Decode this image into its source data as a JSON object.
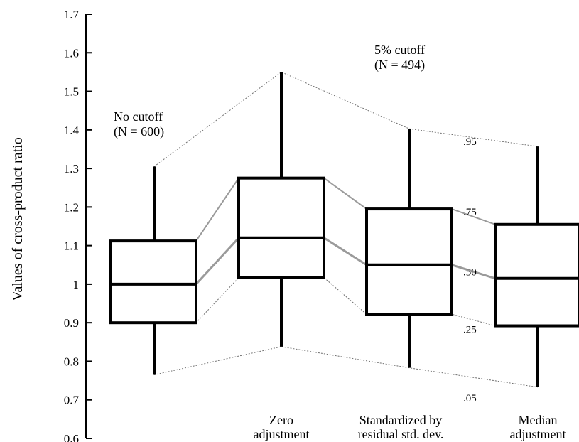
{
  "chart_data": {
    "type": "box",
    "title": "",
    "xlabel": "",
    "ylabel": "Values of cross-product ratio",
    "ylim": [
      0.6,
      1.7
    ],
    "yticks": [
      "0.6",
      "0.7",
      "0.8",
      "0.9",
      "1",
      "1.1",
      "1.2",
      "1.3",
      "1.4",
      "1.5",
      "1.6",
      "1.7"
    ],
    "grid": false,
    "categories": [
      {
        "lines": []
      },
      {
        "lines": [
          "Zero",
          "adjustment"
        ]
      },
      {
        "lines": [
          "Standardized by",
          "residual std. dev."
        ]
      },
      {
        "lines": [
          "Median",
          "adjustment"
        ]
      }
    ],
    "boxes": [
      {
        "p05": 0.765,
        "p25": 0.9,
        "p50": 1.0,
        "p75": 1.112,
        "p95": 1.305
      },
      {
        "p05": 0.838,
        "p25": 1.017,
        "p50": 1.12,
        "p75": 1.275,
        "p95": 1.55
      },
      {
        "p05": 0.783,
        "p25": 0.922,
        "p50": 1.05,
        "p75": 1.195,
        "p95": 1.403
      },
      {
        "p05": 0.733,
        "p25": 0.892,
        "p50": 1.015,
        "p75": 1.155,
        "p95": 1.357
      }
    ],
    "annotations": [
      {
        "lines": [
          "No cutoff",
          "(N = 600)"
        ]
      },
      {
        "lines": [
          "5% cutoff",
          "(N = 494)"
        ]
      }
    ],
    "percentile_labels": [
      {
        "text": ".95",
        "key": "p95"
      },
      {
        "text": ".75",
        "key": "p75"
      },
      {
        "text": ".50",
        "key": "p50"
      },
      {
        "text": ".25",
        "key": "p25"
      },
      {
        "text": ".05",
        "key": "p05"
      }
    ]
  }
}
